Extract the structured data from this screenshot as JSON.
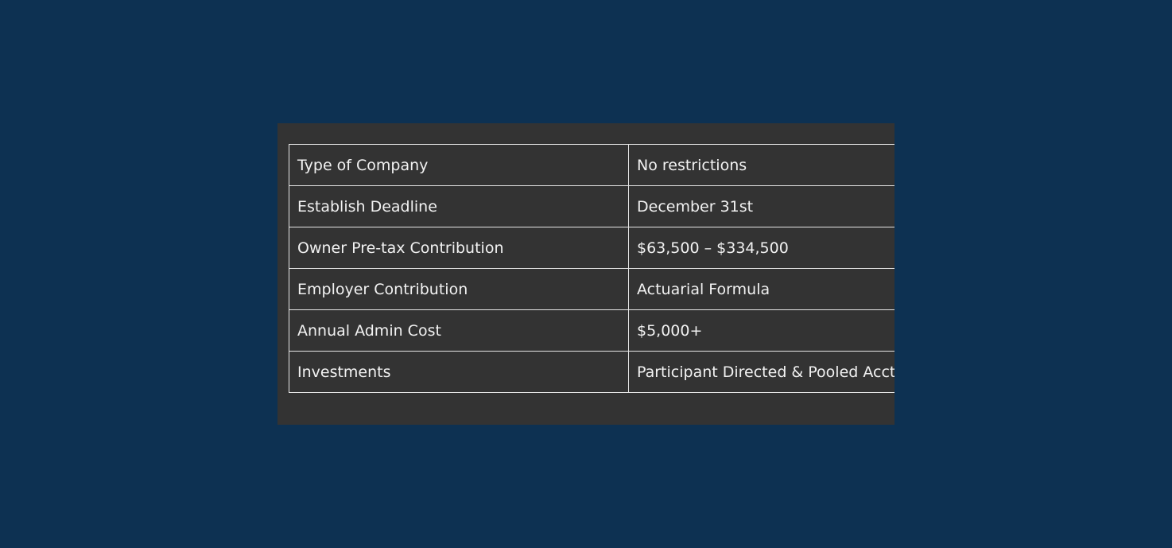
{
  "table": {
    "rows": [
      {
        "label": "Type of Company",
        "value": "No restrictions"
      },
      {
        "label": "Establish Deadline",
        "value": "December 31st"
      },
      {
        "label": "Owner Pre-tax Contribution",
        "value": "$63,500 – $334,500"
      },
      {
        "label": "Employer Contribution",
        "value": "Actuarial Formula"
      },
      {
        "label": "Annual Admin Cost",
        "value": "$5,000+"
      },
      {
        "label": "Investments",
        "value": "Participant Directed & Pooled Acct"
      }
    ]
  },
  "colors": {
    "page_background": "#0d3152",
    "panel_background": "#333333",
    "border": "#e6e6e6",
    "text": "#f2f2f2"
  }
}
